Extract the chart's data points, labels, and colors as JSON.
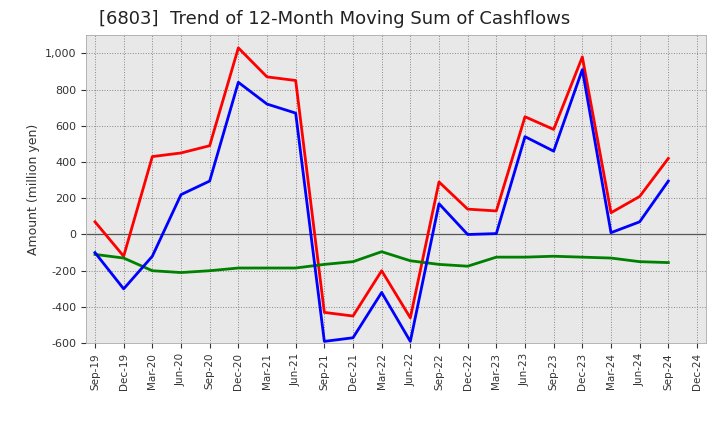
{
  "title": "[6803]  Trend of 12-Month Moving Sum of Cashflows",
  "ylabel": "Amount (million yen)",
  "background_color": "#ffffff",
  "plot_bg_color": "#e8e8e8",
  "grid_color": "#888888",
  "x_labels": [
    "Sep-19",
    "Dec-19",
    "Mar-20",
    "Jun-20",
    "Sep-20",
    "Dec-20",
    "Mar-21",
    "Jun-21",
    "Sep-21",
    "Dec-21",
    "Mar-22",
    "Jun-22",
    "Sep-22",
    "Dec-22",
    "Mar-23",
    "Jun-23",
    "Sep-23",
    "Dec-23",
    "Mar-24",
    "Jun-24",
    "Sep-24",
    "Dec-24"
  ],
  "operating_cashflow": [
    70,
    -120,
    430,
    450,
    490,
    1030,
    870,
    850,
    -430,
    -450,
    -200,
    -460,
    290,
    140,
    130,
    650,
    580,
    980,
    120,
    210,
    420,
    null
  ],
  "investing_cashflow": [
    -110,
    -130,
    -200,
    -210,
    -200,
    -185,
    -185,
    -185,
    -165,
    -150,
    -95,
    -145,
    -165,
    -175,
    -125,
    -125,
    -120,
    -125,
    -130,
    -150,
    -155,
    null
  ],
  "free_cashflow": [
    -100,
    -300,
    -120,
    220,
    295,
    840,
    720,
    670,
    -590,
    -570,
    -320,
    -590,
    170,
    0,
    5,
    540,
    460,
    910,
    10,
    70,
    295,
    null
  ],
  "ylim": [
    -600,
    1100
  ],
  "yticks": [
    -600,
    -400,
    -200,
    0,
    200,
    400,
    600,
    800,
    1000
  ],
  "operating_color": "#ff0000",
  "investing_color": "#008000",
  "free_color": "#0000ff",
  "line_width": 2.0,
  "title_fontsize": 13,
  "title_color": "#222222"
}
